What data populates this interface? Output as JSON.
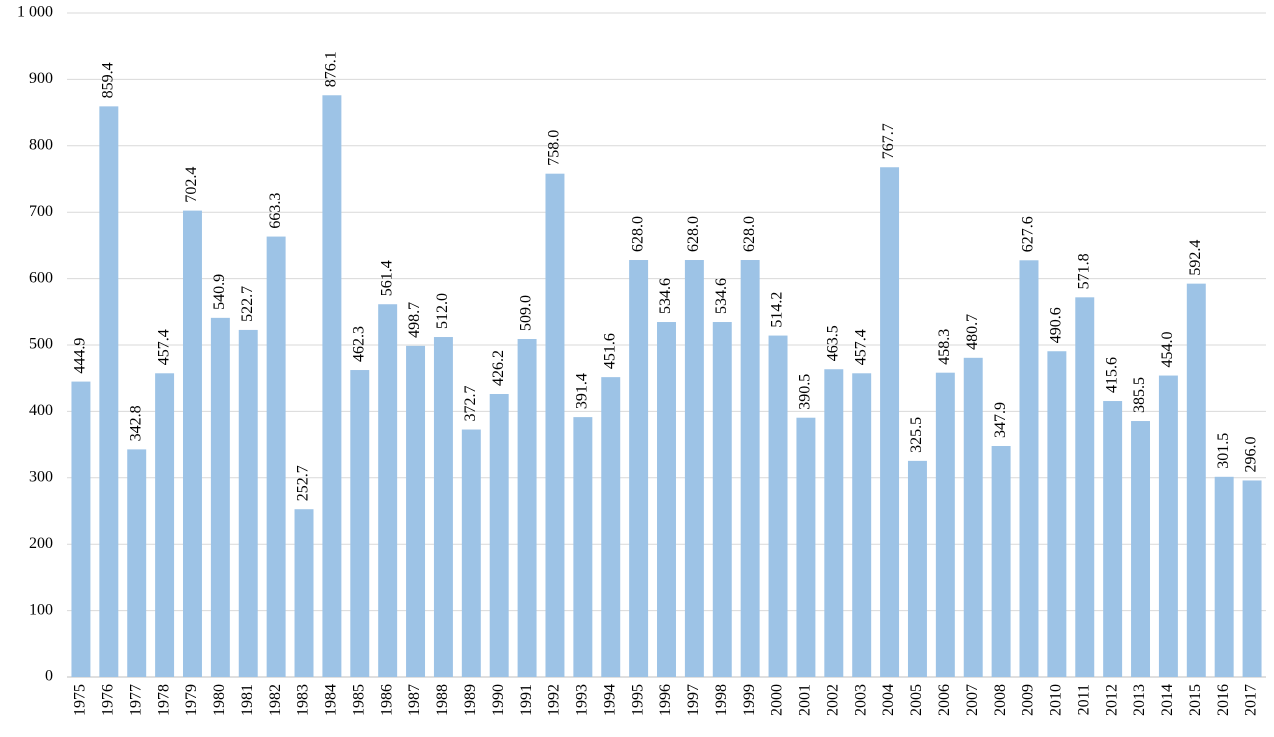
{
  "chart_data": {
    "type": "bar",
    "categories": [
      "1975",
      "1976",
      "1977",
      "1978",
      "1979",
      "1980",
      "1981",
      "1982",
      "1983",
      "1984",
      "1985",
      "1986",
      "1987",
      "1988",
      "1989",
      "1990",
      "1991",
      "1992",
      "1993",
      "1994",
      "1995",
      "1996",
      "1997",
      "1998",
      "1999",
      "2000",
      "2001",
      "2002",
      "2003",
      "2004",
      "2005",
      "2006",
      "2007",
      "2008",
      "2009",
      "2010",
      "2011",
      "2012",
      "2013",
      "2014",
      "2015",
      "2016",
      "2017"
    ],
    "values": [
      444.9,
      859.4,
      342.8,
      457.4,
      702.4,
      540.9,
      522.7,
      663.3,
      252.7,
      876.1,
      462.3,
      561.4,
      498.7,
      512.0,
      372.7,
      426.2,
      509.0,
      758.0,
      391.4,
      451.6,
      628.0,
      534.6,
      628.0,
      534.6,
      628.0,
      514.2,
      390.5,
      463.5,
      457.4,
      767.7,
      325.5,
      458.3,
      480.7,
      347.9,
      627.6,
      490.6,
      571.8,
      415.6,
      385.5,
      454.0,
      592.4,
      301.5,
      296.0
    ],
    "value_labels": [
      "444.9",
      "859.4",
      "342.8",
      "457.4",
      "702.4",
      "540.9",
      "522.7",
      "663.3",
      "252.7",
      "876.1",
      "462.3",
      "561.4",
      "498.7",
      "512.0",
      "372.7",
      "426.2",
      "509.0",
      "758.0",
      "391.4",
      "451.6",
      "628.0",
      "534.6",
      "628.0",
      "534.6",
      "628.0",
      "514.2",
      "390.5",
      "463.5",
      "457.4",
      "767.7",
      "325.5",
      "458.3",
      "480.7",
      "347.9",
      "627.6",
      "490.6",
      "571.8",
      "415.6",
      "385.5",
      "454.0",
      "592.4",
      "301.5",
      "296.0"
    ],
    "color": "#9dc3e6",
    "ylim": [
      0,
      1000
    ],
    "yticks": [
      0,
      100,
      200,
      300,
      400,
      500,
      600,
      700,
      800,
      900,
      {
        "value": 1000,
        "label": "1 000"
      }
    ],
    "grid": true
  }
}
